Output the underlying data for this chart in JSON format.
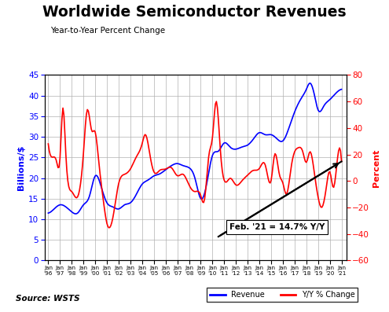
{
  "title": "Worldwide Semiconductor Revenues",
  "subtitle": "Year-to-Year Percent Change",
  "ylabel_left": "Billions/$",
  "ylabel_right": "Percent",
  "source": "Source: WSTS",
  "annotation": "Feb. '21 = 14.7% Y/Y",
  "revenue_color": "#0000FF",
  "yoy_color": "#FF0000",
  "trend_color": "#000000",
  "ylim_left": [
    0,
    45
  ],
  "ylim_right": [
    -60,
    80
  ],
  "yticks_left": [
    0,
    5,
    10,
    15,
    20,
    25,
    30,
    35,
    40,
    45
  ],
  "yticks_right": [
    -60,
    -40,
    -20,
    0,
    20,
    40,
    60,
    80
  ],
  "background_color": "#ffffff",
  "grid_color": "#b0b0b0",
  "tick_years": [
    1996,
    1997,
    1998,
    1999,
    2000,
    2001,
    2002,
    2003,
    2004,
    2005,
    2006,
    2007,
    2008,
    2009,
    2010,
    2011,
    2012,
    2013,
    2014,
    2015,
    2016,
    2017,
    2018,
    2019,
    2020,
    2021
  ]
}
